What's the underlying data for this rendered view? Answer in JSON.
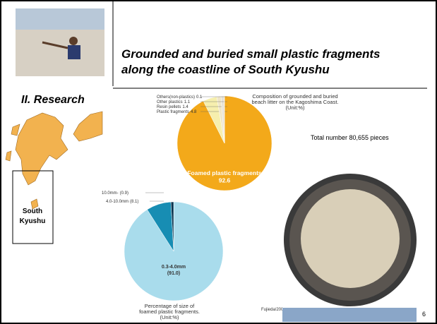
{
  "slide": {
    "title_lines": [
      "Grounded and buried small plastic fragments",
      "along the coastline of South Kyushu"
    ],
    "section": "II. Research",
    "region_lines": [
      "South",
      "Kyushu"
    ],
    "total": "Total number 80,655 pieces",
    "source": "Fujieda/2002",
    "page": "6"
  },
  "chart_data": [
    {
      "type": "pie",
      "title": [
        "Composition of grounded and buried",
        "beach litter on the Kagoshima Coast.",
        "(Unit:%)"
      ],
      "categories": [
        "Foamed plastic fragments",
        "Plastic fragments",
        "Resin pellets",
        "Other plastics",
        "Others(non-plastics)"
      ],
      "values": [
        92.6,
        4.8,
        1.4,
        1.1,
        0.1
      ],
      "colors": [
        "#f3a91a",
        "#f6efae",
        "#efe6c8",
        "#e7e2d6",
        "#b0a9a0"
      ]
    },
    {
      "type": "pie",
      "title": [
        "Percentage of size of",
        "foamed plastic fragments.",
        "(Unit:%)"
      ],
      "categories": [
        "0.3-4.0mm",
        "4.0-10.0mm",
        "10.0mm-"
      ],
      "values": [
        91.0,
        8.1,
        0.9
      ],
      "value_labels": [
        "(91.0)",
        "(8.1)",
        "(0.9)"
      ],
      "colors": [
        "#a9dcec",
        "#178db3",
        "#0a3550"
      ]
    }
  ]
}
